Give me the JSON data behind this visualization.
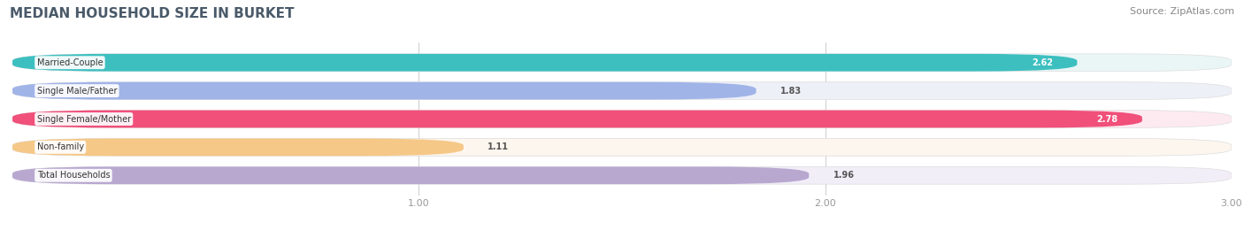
{
  "title": "MEDIAN HOUSEHOLD SIZE IN BURKET",
  "source": "Source: ZipAtlas.com",
  "categories": [
    "Married-Couple",
    "Single Male/Father",
    "Single Female/Mother",
    "Non-family",
    "Total Households"
  ],
  "values": [
    2.62,
    1.83,
    2.78,
    1.11,
    1.96
  ],
  "bar_colors": [
    "#3dbfc0",
    "#a0b4e8",
    "#f0507a",
    "#f5c888",
    "#b8a8d0"
  ],
  "bar_bg_colors": [
    "#eaf6f6",
    "#eef0f8",
    "#fdeaf0",
    "#fdf6ee",
    "#f2eef8"
  ],
  "xlim_data": [
    0,
    3.0
  ],
  "xlim_display": [
    0,
    3.0
  ],
  "xticks": [
    1.0,
    2.0,
    3.0
  ],
  "value_label_white": [
    true,
    false,
    true,
    false,
    false
  ],
  "title_fontsize": 11,
  "source_fontsize": 8,
  "bar_height": 0.62,
  "background_color": "#ffffff",
  "bar_row_bg": "#f0f0f0"
}
